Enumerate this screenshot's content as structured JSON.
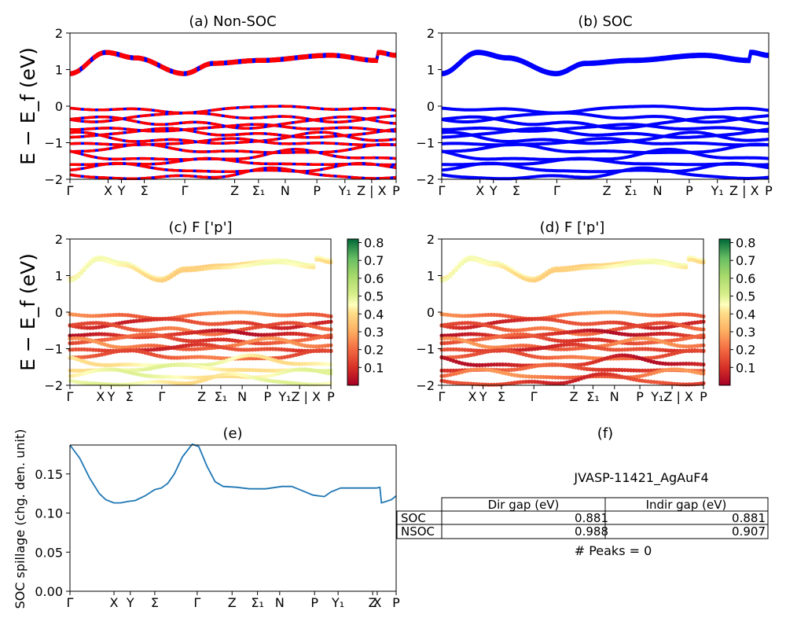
{
  "chart_data": [
    {
      "panel": "a",
      "type": "line",
      "title": "(a) Non-SOC",
      "ylabel": "E − E_f (eV)",
      "ylim": [
        -2,
        2
      ],
      "yticks": [
        "2",
        "1",
        "0",
        "−1",
        "−2"
      ],
      "xticks": [
        "Γ",
        "X",
        "Y",
        "Σ",
        "Γ",
        "Z",
        "Σ₁",
        "N",
        "P",
        "Y₁",
        "Z | X",
        "P"
      ],
      "style": "spin-up (blue) and spin-down (red, dashed) bands overlaid",
      "colors": [
        "#0000ff",
        "#ff0000"
      ],
      "bands_sample": {
        "x": [
          0,
          0.11,
          0.2,
          0.35,
          0.44,
          0.58,
          0.8,
          0.94,
          1.0
        ],
        "conduction": [
          0.92,
          1.5,
          1.35,
          0.92,
          1.2,
          1.28,
          1.42,
          1.28,
          1.45
        ],
        "valence_top": [
          -0.05,
          -0.2,
          -0.15,
          -0.05,
          -0.25,
          -0.1,
          -0.2,
          -0.15,
          -0.3
        ]
      }
    },
    {
      "panel": "b",
      "type": "line",
      "title": "(b) SOC",
      "ylim": [
        -2,
        2
      ],
      "yticks": [
        "2",
        "1",
        "0",
        "−1",
        "−2"
      ],
      "xticks": [
        "Γ",
        "X",
        "Y",
        "Σ",
        "Γ",
        "Z",
        "Σ₁",
        "N",
        "P",
        "Y₁",
        "Z | X",
        "P"
      ],
      "colors": [
        "#0000ff"
      ]
    },
    {
      "panel": "c",
      "type": "scatter",
      "title": "(c)  F ['p']",
      "ylabel": "E − E_f (eV)",
      "ylim": [
        -2,
        2
      ],
      "yticks": [
        "2",
        "1",
        "0",
        "−1",
        "−2"
      ],
      "xticks": [
        "Γ",
        "X",
        "Y",
        "Σ",
        "Γ",
        "Z",
        "Σ₁",
        "N",
        "P",
        "Y₁Z | X",
        "P"
      ],
      "colorbar": {
        "range": [
          0,
          0.82
        ],
        "ticks": [
          "0.8",
          "0.7",
          "0.6",
          "0.5",
          "0.4",
          "0.3",
          "0.2",
          "0.1"
        ],
        "colormap": "RdYlGn"
      }
    },
    {
      "panel": "d",
      "type": "scatter",
      "title": "(d) F ['p']",
      "ylim": [
        -2,
        2
      ],
      "yticks": [
        "2",
        "1",
        "0",
        "−1",
        "−2"
      ],
      "xticks": [
        "Γ",
        "X",
        "Y",
        "Σ",
        "Γ",
        "Z",
        "Σ₁",
        "N",
        "P",
        "Y₁Z | X",
        "P"
      ],
      "colorbar": {
        "range": [
          0,
          0.82
        ],
        "ticks": [
          "0.8",
          "0.7",
          "0.6",
          "0.5",
          "0.4",
          "0.3",
          "0.2",
          "0.1"
        ],
        "colormap": "RdYlGn"
      }
    },
    {
      "panel": "e",
      "type": "line",
      "title": "(e)",
      "ylabel": "SOC spillage (chg. den. unit)",
      "ylim": [
        0,
        0.187
      ],
      "yticks": [
        "0.15",
        "0.10",
        "0.05",
        "0.00"
      ],
      "xticks": [
        "Γ",
        "X",
        "Y",
        "Σ",
        "Γ",
        "Z",
        "Σ₁",
        "N",
        "P",
        "Y₁",
        "Z",
        "X",
        "P"
      ],
      "colors": [
        "#1f77b4"
      ],
      "series": [
        {
          "x": [
            0,
            0.03,
            0.06,
            0.09,
            0.11,
            0.135,
            0.155,
            0.18,
            0.2,
            0.23,
            0.26,
            0.28,
            0.3,
            0.32,
            0.345,
            0.375,
            0.395,
            0.42,
            0.445,
            0.47,
            0.51,
            0.55,
            0.6,
            0.65,
            0.68,
            0.71,
            0.745,
            0.78,
            0.8,
            0.83,
            0.87,
            0.92,
            0.94,
            0.95,
            0.955,
            0.97,
            0.985,
            1.0
          ],
          "y": [
            0.187,
            0.17,
            0.145,
            0.125,
            0.117,
            0.113,
            0.113,
            0.115,
            0.116,
            0.122,
            0.13,
            0.132,
            0.138,
            0.15,
            0.172,
            0.188,
            0.185,
            0.16,
            0.14,
            0.134,
            0.133,
            0.131,
            0.131,
            0.134,
            0.134,
            0.129,
            0.123,
            0.121,
            0.127,
            0.132,
            0.132,
            0.132,
            0.132,
            0.133,
            0.113,
            0.115,
            0.117,
            0.122
          ]
        }
      ]
    },
    {
      "panel": "f",
      "type": "table",
      "title": "(f)",
      "subtitle": "JVASP-11421_AgAuF4",
      "columns": [
        "Dir gap (eV)",
        "Indir gap (eV)"
      ],
      "rows": [
        {
          "label": "SOC",
          "values": [
            "0.881",
            "0.881"
          ]
        },
        {
          "label": "NSOC",
          "values": [
            "0.988",
            "0.907"
          ]
        }
      ],
      "footer": "# Peaks = 0"
    }
  ]
}
